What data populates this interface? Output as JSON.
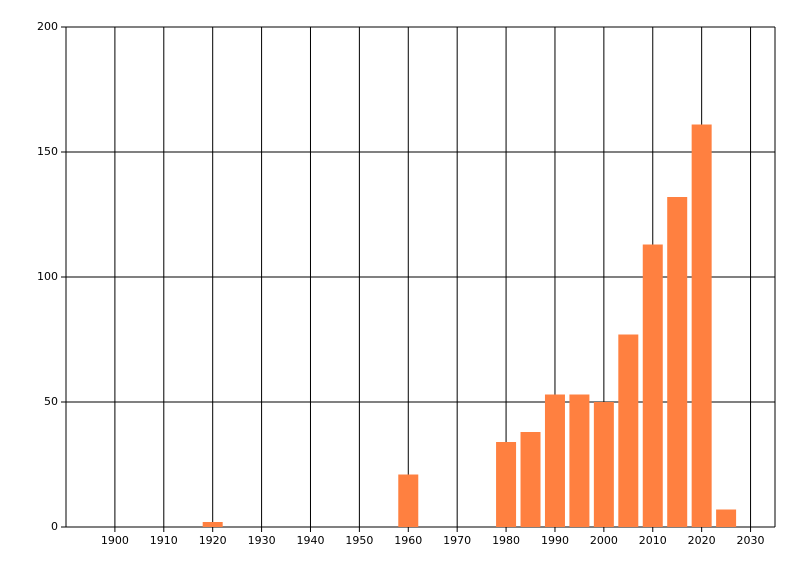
{
  "chart_data": {
    "type": "bar",
    "x": [
      1920,
      1960,
      1980,
      1985,
      1990,
      1995,
      2000,
      2005,
      2010,
      2015,
      2020,
      2025
    ],
    "values": [
      2,
      21,
      34,
      38,
      53,
      53,
      50,
      77,
      113,
      132,
      161,
      7
    ],
    "color": "#ff8040",
    "xlim": [
      1890,
      2035
    ],
    "xticks": [
      1900,
      1910,
      1920,
      1930,
      1940,
      1950,
      1960,
      1970,
      1980,
      1990,
      2000,
      2010,
      2020,
      2030
    ],
    "ylim": [
      0,
      200
    ],
    "yticks": [
      0,
      50,
      100,
      150,
      200
    ],
    "grid": true
  }
}
